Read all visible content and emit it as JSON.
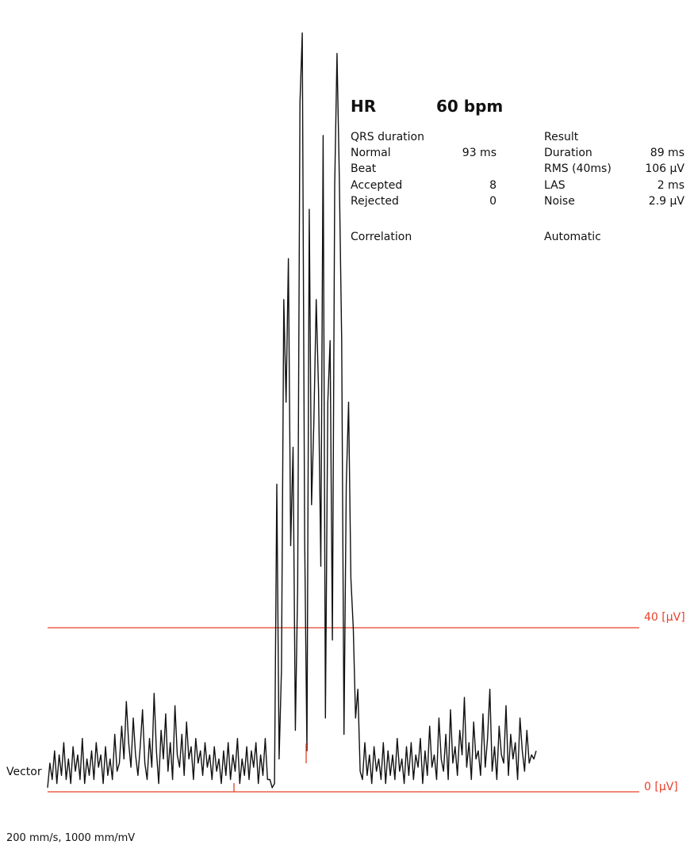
{
  "header": {
    "hr_label": "HR",
    "hr_value": "60 bpm"
  },
  "qrs": {
    "title": "QRS duration",
    "normal_label": "Normal",
    "normal_value": "93 ms",
    "beat_title": "Beat",
    "accepted_label": "Accepted",
    "accepted_value": "8",
    "rejected_label": "Rejected",
    "rejected_value": "0",
    "correlation_label": "Correlation"
  },
  "result": {
    "title": "Result",
    "duration_label": "Duration",
    "duration_value": "89 ms",
    "rms_label": "RMS (40ms)",
    "rms_value": "106 µV",
    "las_label": "LAS",
    "las_value": "2 ms",
    "noise_label": "Noise",
    "noise_value": "2.9 µV",
    "mode_label": "Automatic"
  },
  "lead_label": "Vector",
  "scale_label": "200 mm/s, 1000 mm/mV",
  "colors": {
    "trace": "#111111",
    "reference": "#e8402a"
  },
  "chart_data": {
    "type": "line",
    "title": "",
    "xlabel": "",
    "ylabel": "",
    "y_unit": "µV",
    "reference_lines": [
      {
        "value": 40,
        "label": "40 [µV]"
      },
      {
        "value": 0,
        "label": "0 [µV]"
      }
    ],
    "series": [
      {
        "y": [
          1,
          7,
          3,
          10,
          2,
          9,
          4,
          12,
          3,
          8,
          2,
          11,
          5,
          9,
          3,
          13,
          2,
          8,
          4,
          10,
          3,
          12,
          6,
          9,
          2,
          11,
          4,
          8,
          3,
          14,
          5,
          7,
          16,
          8,
          22,
          12,
          6,
          18,
          9,
          4,
          11,
          20,
          7,
          3,
          13,
          6,
          24,
          10,
          2,
          15,
          8,
          19,
          5,
          12,
          3,
          21,
          9,
          6,
          14,
          4,
          17,
          8,
          11,
          3,
          13,
          7,
          10,
          4,
          12,
          6,
          9,
          3,
          11,
          5,
          8,
          2,
          10,
          4,
          12,
          3,
          9,
          5,
          13,
          2,
          8,
          4,
          11,
          3,
          10,
          6,
          12,
          2,
          9,
          4,
          13,
          3,
          3,
          1,
          2,
          75,
          8,
          30,
          120,
          95,
          130,
          60,
          84,
          15,
          50,
          168,
          185,
          62,
          10,
          142,
          70,
          90,
          120,
          98,
          55,
          160,
          18,
          95,
          110,
          37,
          148,
          180,
          150,
          110,
          14,
          75,
          95,
          52,
          40,
          18,
          25,
          5,
          3,
          12,
          4,
          9,
          2,
          11,
          5,
          8,
          3,
          12,
          2,
          10,
          4,
          9,
          3,
          13,
          5,
          8,
          2,
          11,
          4,
          12,
          3,
          9,
          6,
          13,
          2,
          10,
          4,
          16,
          6,
          9,
          3,
          18,
          8,
          5,
          14,
          3,
          20,
          7,
          11,
          4,
          15,
          9,
          23,
          6,
          12,
          3,
          17,
          8,
          10,
          4,
          19,
          6,
          13,
          25,
          5,
          11,
          3,
          16,
          9,
          7,
          21,
          4,
          14,
          8,
          12,
          3,
          18,
          10,
          5,
          15,
          7,
          9,
          8,
          10
        ]
      }
    ]
  }
}
